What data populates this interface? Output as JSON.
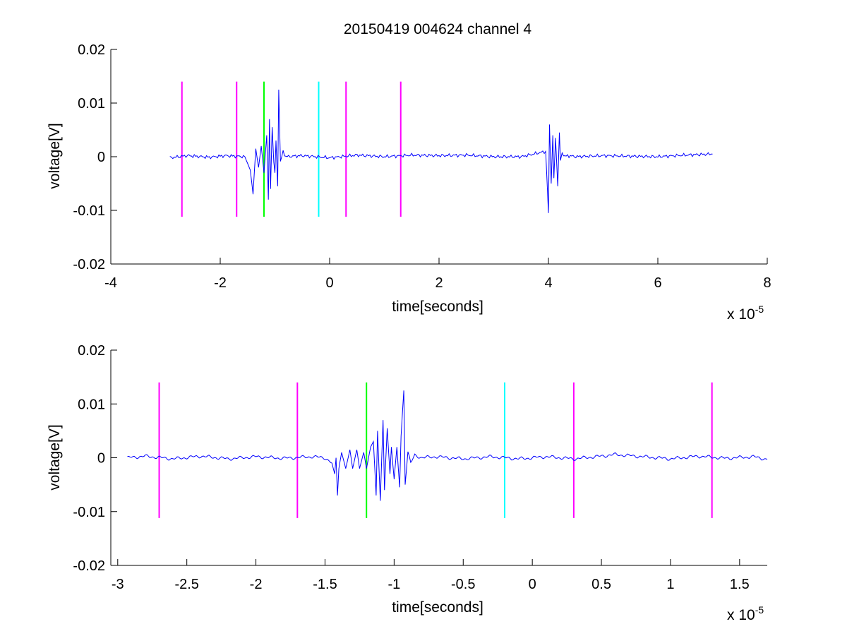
{
  "figure": {
    "title": "20150419 004624 channel 4"
  },
  "chart_data": [
    {
      "type": "line",
      "xlabel": "time[seconds]",
      "ylabel": "voltage[V]",
      "x_exponent_label": "x 10",
      "x_exponent": "-5",
      "xlim": [
        -4,
        8
      ],
      "ylim": [
        -0.02,
        0.02
      ],
      "xticks": [
        -4,
        -2,
        0,
        2,
        4,
        6,
        8
      ],
      "xtick_labels": [
        "-4",
        "-2",
        "0",
        "2",
        "4",
        "6",
        "8"
      ],
      "yticks": [
        -0.02,
        -0.01,
        0,
        0.01,
        0.02
      ],
      "ytick_labels": [
        "-0.02",
        "-0.01",
        "0",
        "0.01",
        "0.02"
      ],
      "series": [
        {
          "color": "#0000ff",
          "x": [
            -2.92,
            -2.6,
            -2.2,
            -1.9,
            -1.55,
            -1.45,
            -1.4,
            -1.35,
            -1.3,
            -1.25,
            -1.2,
            -1.15,
            -1.12,
            -1.1,
            -1.08,
            -1.05,
            -1.02,
            -1.0,
            -0.98,
            -0.95,
            -0.93,
            -0.9,
            -0.85,
            -0.8,
            -0.5,
            0.0,
            0.5,
            1.0,
            1.5,
            2.0,
            2.5,
            3.0,
            3.5,
            3.95,
            4.0,
            4.02,
            4.05,
            4.08,
            4.1,
            4.13,
            4.17,
            4.2,
            4.22,
            4.25,
            4.3,
            4.35,
            4.5,
            5.0,
            5.5,
            6.0,
            6.5,
            7.0
          ],
          "y": [
            -0.0002,
            0.0002,
            -0.0001,
            0.0002,
            0.0,
            -0.0025,
            -0.007,
            0.0015,
            -0.002,
            0.002,
            -0.003,
            0.004,
            -0.008,
            0.007,
            -0.006,
            0.0055,
            -0.001,
            -0.003,
            0.003,
            -0.0055,
            0.0125,
            -0.001,
            0.001,
            0.0,
            0.0002,
            -0.0002,
            0.0003,
            0.0,
            0.0003,
            0.0002,
            0.0003,
            0.0,
            0.0,
            0.001,
            -0.0105,
            0.006,
            -0.005,
            0.004,
            -0.004,
            0.0035,
            -0.0055,
            0.0045,
            -0.001,
            0.0008,
            0.0,
            0.0002,
            0.0,
            0.0002,
            0.0001,
            0.0,
            0.0003,
            0.0005
          ]
        }
      ],
      "markers": [
        {
          "x": -2.7,
          "color": "#ff00ff"
        },
        {
          "x": -1.7,
          "color": "#ff00ff"
        },
        {
          "x": -1.2,
          "color": "#00ff00"
        },
        {
          "x": -0.2,
          "color": "#00ffff"
        },
        {
          "x": 0.3,
          "color": "#ff00ff"
        },
        {
          "x": 1.3,
          "color": "#ff00ff"
        }
      ],
      "marker_range": [
        -0.0112,
        0.014
      ],
      "grid": false
    },
    {
      "type": "line",
      "xlabel": "time[seconds]",
      "ylabel": "voltage[V]",
      "x_exponent_label": "x 10",
      "x_exponent": "-5",
      "xlim": [
        -3.05,
        1.7
      ],
      "ylim": [
        -0.02,
        0.02
      ],
      "xticks": [
        -3,
        -2.5,
        -2,
        -1.5,
        -1,
        -0.5,
        0,
        0.5,
        1,
        1.5
      ],
      "xtick_labels": [
        "-3",
        "-2.5",
        "-2",
        "-1.5",
        "-1",
        "-0.5",
        "0",
        "0.5",
        "1",
        "1.5"
      ],
      "yticks": [
        -0.02,
        -0.01,
        0,
        0.01,
        0.02
      ],
      "ytick_labels": [
        "-0.02",
        "-0.01",
        "0",
        "0.01",
        "0.02"
      ],
      "series": [
        {
          "color": "#0000ff",
          "x": [
            -2.93,
            -2.8,
            -2.6,
            -2.4,
            -2.2,
            -2.0,
            -1.8,
            -1.6,
            -1.5,
            -1.45,
            -1.43,
            -1.42,
            -1.41,
            -1.4,
            -1.38,
            -1.35,
            -1.32,
            -1.3,
            -1.27,
            -1.25,
            -1.22,
            -1.2,
            -1.17,
            -1.15,
            -1.13,
            -1.12,
            -1.1,
            -1.08,
            -1.07,
            -1.05,
            -1.03,
            -1.02,
            -1.0,
            -0.98,
            -0.96,
            -0.95,
            -0.93,
            -0.92,
            -0.9,
            -0.88,
            -0.85,
            -0.8,
            -0.7,
            -0.5,
            -0.3,
            -0.1,
            0.1,
            0.3,
            0.5,
            0.6,
            0.8,
            1.0,
            1.2,
            1.4,
            1.6,
            1.7
          ],
          "y": [
            0.0,
            0.0003,
            -0.0002,
            0.0003,
            -0.0002,
            0.0002,
            -0.0001,
            0.0002,
            0.0,
            -0.001,
            -0.003,
            0.0,
            -0.007,
            -0.002,
            0.001,
            -0.002,
            0.0015,
            -0.002,
            0.0015,
            -0.002,
            0.001,
            -0.002,
            0.002,
            0.003,
            -0.007,
            0.005,
            -0.008,
            0.007,
            -0.006,
            0.0055,
            -0.003,
            0.002,
            -0.004,
            0.002,
            -0.0055,
            0.004,
            0.0125,
            -0.005,
            0.001,
            -0.001,
            0.0005,
            0.0,
            0.0002,
            -0.0002,
            0.0002,
            -0.0002,
            0.0002,
            -0.0002,
            0.0003,
            0.0006,
            0.0002,
            -0.0002,
            0.0003,
            -0.0001,
            0.0002,
            -0.0003
          ]
        }
      ],
      "markers": [
        {
          "x": -2.7,
          "color": "#ff00ff"
        },
        {
          "x": -1.7,
          "color": "#ff00ff"
        },
        {
          "x": -1.2,
          "color": "#00ff00"
        },
        {
          "x": -0.2,
          "color": "#00ffff"
        },
        {
          "x": 0.3,
          "color": "#ff00ff"
        },
        {
          "x": 1.3,
          "color": "#ff00ff"
        }
      ],
      "marker_range": [
        -0.0112,
        0.014
      ],
      "grid": false
    }
  ]
}
